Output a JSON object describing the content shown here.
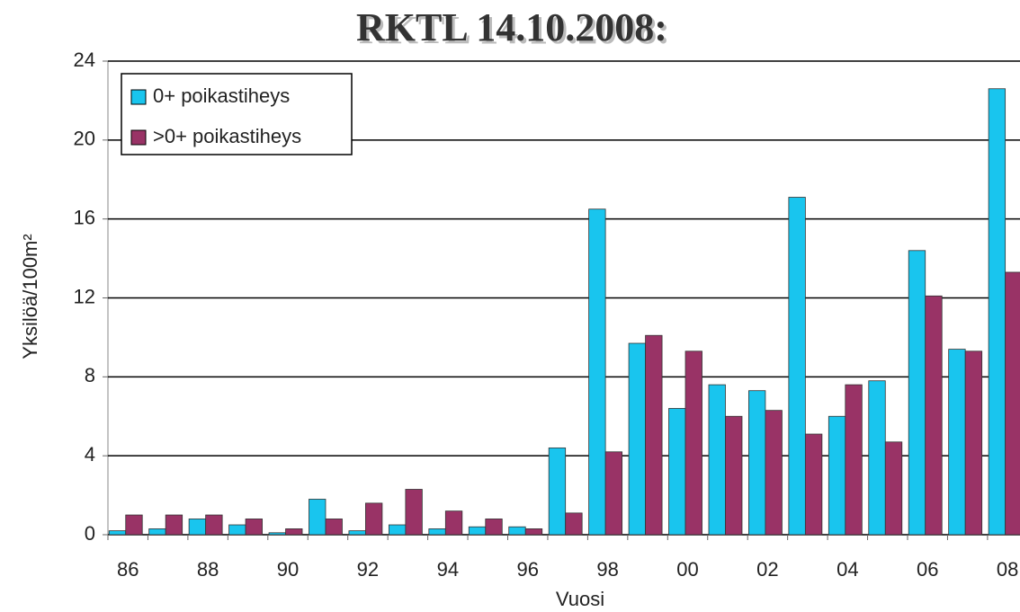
{
  "chart_data": {
    "type": "bar",
    "title": "RKTL 14.10.2008:",
    "x_label": "Vuosi",
    "y_label": "Yksilöä/100m²",
    "categories": [
      "86",
      null,
      "88",
      null,
      "90",
      null,
      "92",
      null,
      "94",
      null,
      "96",
      null,
      "98",
      null,
      "00",
      null,
      "02",
      null,
      "04",
      null,
      "06",
      null,
      "08"
    ],
    "series": [
      {
        "name": "0+ poikastiheys",
        "color": "#19c5ee",
        "values": [
          0.2,
          0.3,
          0.8,
          0.5,
          0.1,
          1.8,
          0.2,
          0.5,
          0.3,
          0.4,
          0.4,
          4.4,
          16.5,
          9.7,
          6.4,
          7.6,
          7.3,
          17.1,
          6.0,
          7.8,
          14.4,
          9.4,
          22.6
        ]
      },
      {
        "name": ">0+ poikastiheys",
        "color": "#993366",
        "values": [
          1.0,
          1.0,
          1.0,
          0.8,
          0.3,
          0.8,
          1.6,
          2.3,
          1.2,
          0.8,
          0.3,
          1.1,
          4.2,
          10.1,
          9.3,
          6.0,
          6.3,
          5.1,
          7.6,
          4.7,
          12.1,
          9.3,
          13.3
        ]
      }
    ],
    "ylim": [
      0,
      24
    ],
    "yticks": [
      0,
      4,
      8,
      12,
      16,
      20,
      24
    ],
    "grid": true,
    "legend": "upper left"
  }
}
